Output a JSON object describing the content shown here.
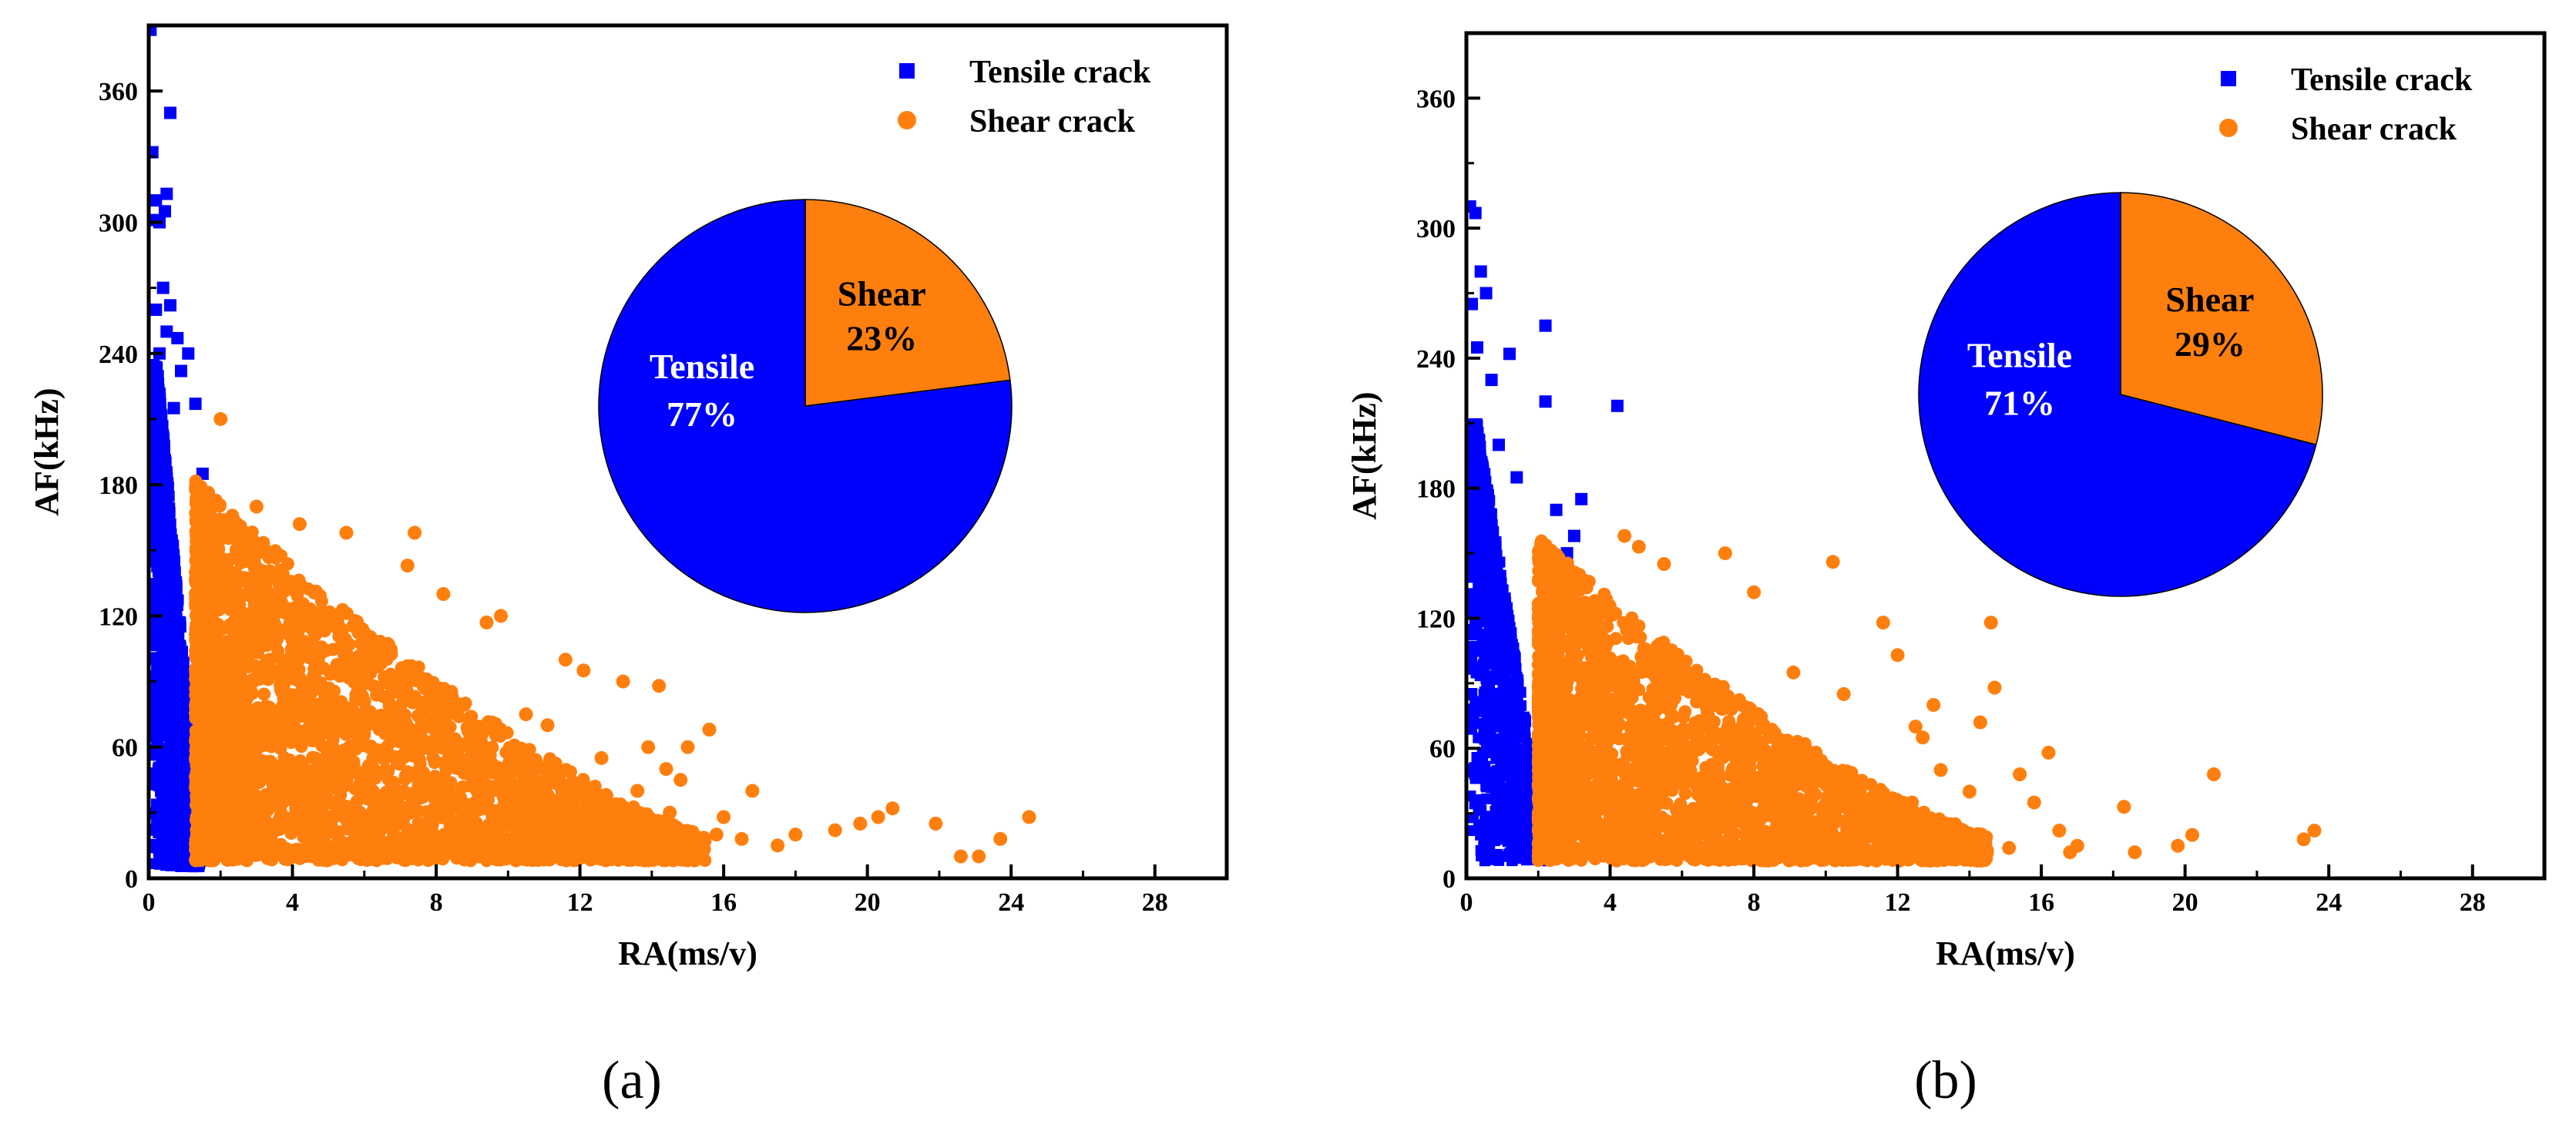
{
  "chart_data": [
    {
      "type": "scatter",
      "panel_label": "(a)",
      "xlabel": "RA(ms/v)",
      "ylabel": "AF(kHz)",
      "xlim": [
        0,
        30
      ],
      "ylim": [
        0,
        390
      ],
      "xticks": [
        0,
        4,
        8,
        12,
        16,
        20,
        24,
        28
      ],
      "yticks": [
        0,
        60,
        120,
        180,
        240,
        300,
        360
      ],
      "legend": {
        "placement": "top-right"
      },
      "series": [
        {
          "name": "Tensile crack",
          "color": "#0000ff",
          "marker": "square",
          "points": [
            [
              0.05,
              388
            ],
            [
              0.1,
              332
            ],
            [
              0.6,
              350
            ],
            [
              0.2,
              310
            ],
            [
              0.5,
              313
            ],
            [
              0.45,
              305
            ],
            [
              0.15,
              301
            ],
            [
              0.3,
              300
            ],
            [
              0.4,
              270
            ],
            [
              0.6,
              262
            ],
            [
              0.2,
              260
            ],
            [
              0.5,
              250
            ],
            [
              0.8,
              247
            ],
            [
              0.3,
              240
            ],
            [
              1.1,
              240
            ],
            [
              0.9,
              232
            ],
            [
              1.3,
              217
            ],
            [
              0.7,
              215
            ],
            [
              1.5,
              185
            ],
            [
              0.1,
              200
            ]
          ],
          "band": {
            "x_max_at_y0": 1.5,
            "x_max_at_ymax": 0.25,
            "y_min": 5,
            "y_max": 235,
            "count": 1300
          }
        },
        {
          "name": "Shear crack",
          "color": "#ff7f0e",
          "marker": "circle",
          "points": [
            [
              2.0,
              210
            ],
            [
              3.0,
              170
            ],
            [
              4.2,
              162
            ],
            [
              5.5,
              158
            ],
            [
              7.4,
              158
            ],
            [
              7.2,
              143
            ],
            [
              8.2,
              130
            ],
            [
              9.8,
              120
            ],
            [
              9.4,
              117
            ],
            [
              11.6,
              100
            ],
            [
              12.1,
              95
            ],
            [
              13.2,
              90
            ],
            [
              14.2,
              88
            ],
            [
              15.6,
              68
            ],
            [
              15.0,
              60
            ],
            [
              14.8,
              45
            ],
            [
              16.0,
              28
            ],
            [
              16.8,
              40
            ],
            [
              17.5,
              15
            ],
            [
              16.5,
              18
            ],
            [
              18.0,
              20
            ],
            [
              19.1,
              22
            ],
            [
              19.8,
              25
            ],
            [
              20.3,
              28
            ],
            [
              20.7,
              32
            ],
            [
              21.9,
              25
            ],
            [
              23.7,
              18
            ],
            [
              24.5,
              28
            ],
            [
              22.6,
              10
            ],
            [
              23.1,
              10
            ],
            [
              15.4,
              15
            ],
            [
              15.8,
              20
            ],
            [
              14.5,
              30
            ],
            [
              13.6,
              40
            ],
            [
              11.1,
              70
            ],
            [
              12.6,
              55
            ],
            [
              10.5,
              75
            ],
            [
              13.9,
              60
            ],
            [
              14.4,
              50
            ],
            [
              12.2,
              30
            ]
          ],
          "cloud": {
            "x_min": 1.3,
            "x_far": 15.5,
            "y_min": 8,
            "y_peak": 170,
            "count": 3200
          }
        }
      ],
      "pie": {
        "slices": [
          {
            "label": "Tensile",
            "percent_label": "77%",
            "value": 77,
            "color": "#0000ff",
            "text_color": "#ffffff"
          },
          {
            "label": "Shear",
            "percent_label": "23%",
            "value": 23,
            "color": "#ff7f0e",
            "text_color": "#000000"
          }
        ]
      }
    },
    {
      "type": "scatter",
      "panel_label": "(b)",
      "xlabel": "RA(ms/v)",
      "ylabel": "AF(kHz)",
      "xlim": [
        0,
        30
      ],
      "ylim": [
        0,
        390
      ],
      "xticks": [
        0,
        4,
        8,
        12,
        16,
        20,
        24,
        28
      ],
      "yticks": [
        0,
        60,
        120,
        180,
        240,
        300,
        360
      ],
      "legend": {
        "placement": "top-right"
      },
      "series": [
        {
          "name": "Tensile crack",
          "color": "#0000ff",
          "marker": "square",
          "points": [
            [
              0.1,
              310
            ],
            [
              0.25,
              307
            ],
            [
              0.4,
              280
            ],
            [
              0.55,
              270
            ],
            [
              0.15,
              265
            ],
            [
              2.2,
              255
            ],
            [
              0.3,
              245
            ],
            [
              1.2,
              242
            ],
            [
              0.7,
              230
            ],
            [
              2.2,
              220
            ],
            [
              4.2,
              218
            ],
            [
              0.9,
              200
            ],
            [
              1.4,
              185
            ],
            [
              2.5,
              170
            ],
            [
              3.0,
              158
            ],
            [
              3.2,
              175
            ],
            [
              2.8,
              150
            ]
          ],
          "band": {
            "x_max_at_y0": 2.3,
            "x_max_at_ymax": 0.3,
            "y_min": 8,
            "y_max": 210,
            "count": 1100
          }
        },
        {
          "name": "Shear crack",
          "color": "#ff7f0e",
          "marker": "circle",
          "points": [
            [
              4.4,
              158
            ],
            [
              4.8,
              153
            ],
            [
              7.2,
              150
            ],
            [
              10.2,
              146
            ],
            [
              5.5,
              145
            ],
            [
              8.0,
              132
            ],
            [
              14.6,
              118
            ],
            [
              11.6,
              118
            ],
            [
              12.0,
              103
            ],
            [
              9.1,
              95
            ],
            [
              10.5,
              85
            ],
            [
              13.0,
              80
            ],
            [
              14.3,
              72
            ],
            [
              12.7,
              65
            ],
            [
              16.2,
              58
            ],
            [
              15.4,
              48
            ],
            [
              14.0,
              40
            ],
            [
              15.8,
              35
            ],
            [
              16.5,
              22
            ],
            [
              17.0,
              15
            ],
            [
              18.3,
              33
            ],
            [
              18.6,
              12
            ],
            [
              19.8,
              15
            ],
            [
              20.8,
              48
            ],
            [
              20.2,
              20
            ],
            [
              23.3,
              18
            ],
            [
              23.6,
              22
            ],
            [
              15.1,
              14
            ],
            [
              16.8,
              12
            ],
            [
              13.6,
              25
            ],
            [
              12.4,
              35
            ],
            [
              11.0,
              45
            ],
            [
              13.2,
              50
            ],
            [
              14.7,
              88
            ],
            [
              12.5,
              70
            ]
          ],
          "cloud": {
            "x_min": 2.0,
            "x_far": 14.5,
            "y_min": 8,
            "y_peak": 145,
            "count": 2800
          }
        }
      ],
      "pie": {
        "slices": [
          {
            "label": "Tensile",
            "percent_label": "71%",
            "value": 71,
            "color": "#0000ff",
            "text_color": "#ffffff"
          },
          {
            "label": "Shear",
            "percent_label": "29%",
            "value": 29,
            "color": "#ff7f0e",
            "text_color": "#000000"
          }
        ]
      }
    }
  ]
}
